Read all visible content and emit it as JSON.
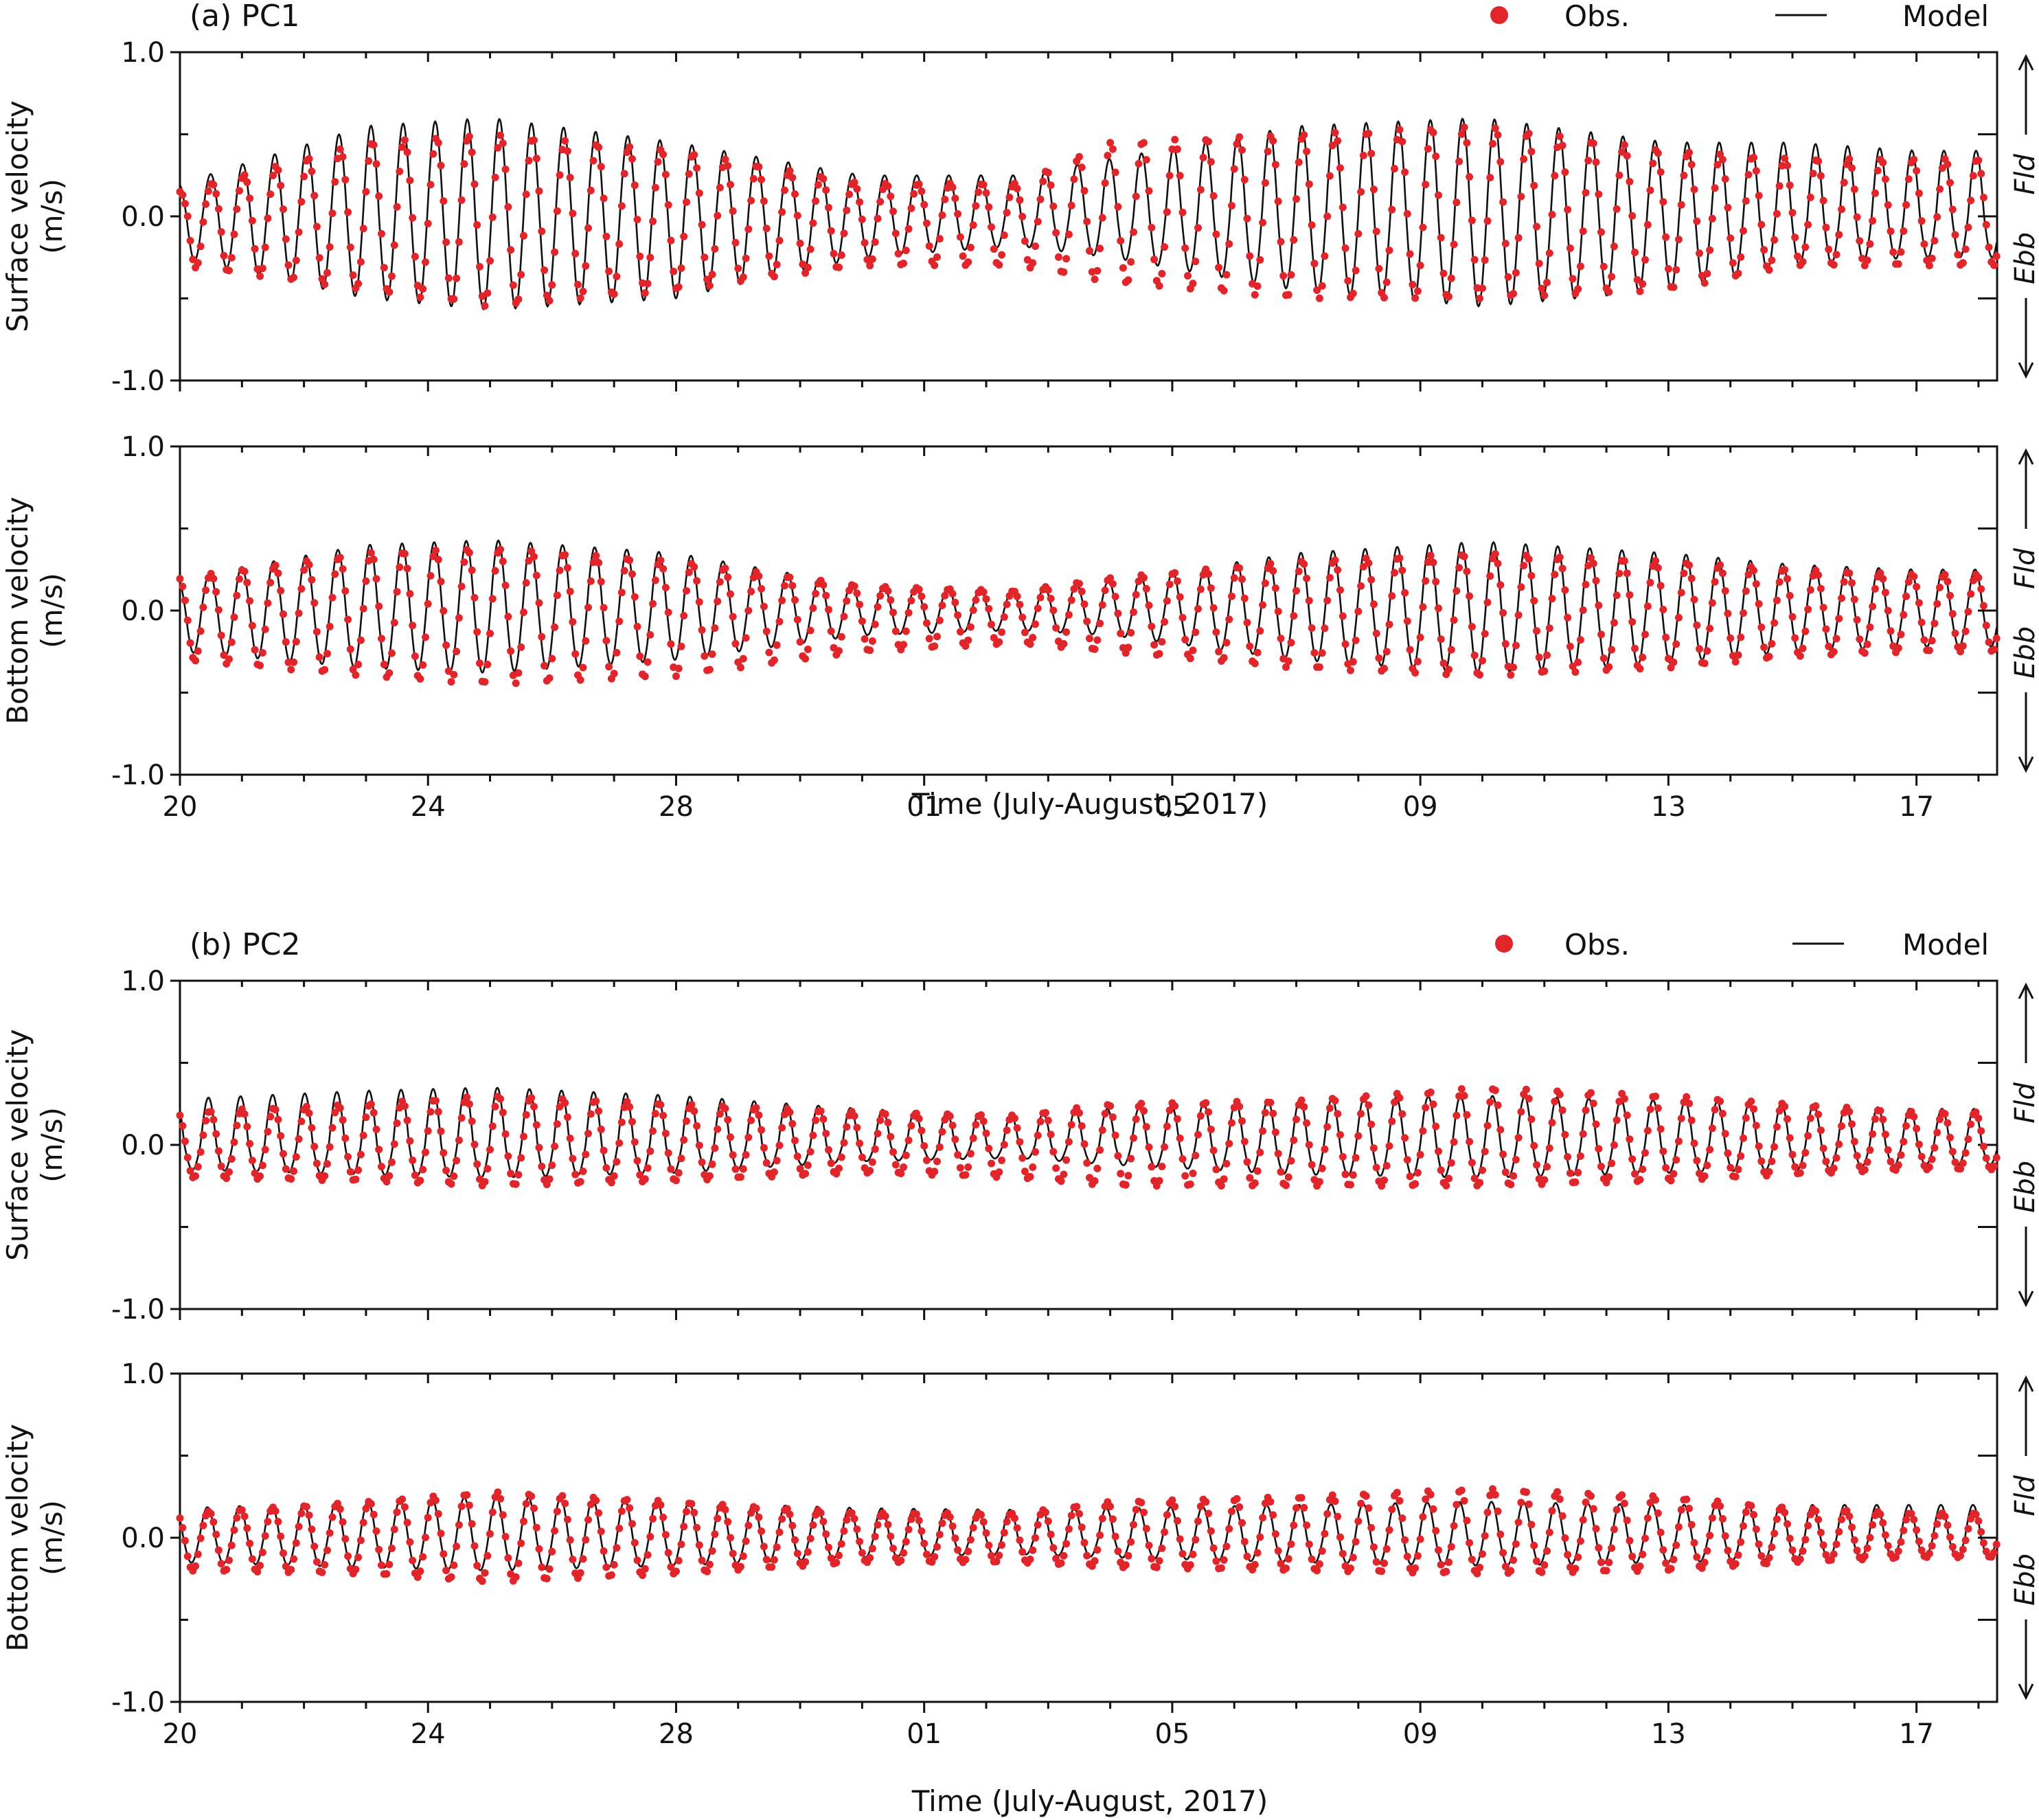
{
  "chart_data": [
    {
      "type": "line",
      "panel": "(a) PC1",
      "legend": {
        "obs": "Obs.",
        "model": "Model",
        "placement": "top-right"
      },
      "xlabel": "Time (July-August, 2017)",
      "x_tick_labels": [
        "20",
        "24",
        "28",
        "01",
        "05",
        "09",
        "13",
        "17"
      ],
      "flow_labels": {
        "flood": "Fld",
        "ebb": "Ebb"
      },
      "colors": {
        "obs": "#e0252b",
        "model": "#111111"
      },
      "subplots": [
        {
          "ylabel": [
            "Surface velocity",
            "(m/s)"
          ],
          "ylim": [
            -1.0,
            1.0
          ],
          "y_tick_labels": [
            "1.0",
            "0.0",
            "-1.0"
          ],
          "series": [
            {
              "name": "Model",
              "kind": "line",
              "description": "semi-diurnal tidal velocity, ~2 cycles/day",
              "x_days": [
                0,
                3,
                5,
                8,
                11,
                13.5,
                15,
                18,
                21,
                24,
                26,
                28
              ],
              "flood_peak": [
                0.2,
                0.55,
                0.6,
                0.45,
                0.25,
                0.25,
                0.35,
                0.55,
                0.6,
                0.45,
                0.45,
                0.4
              ],
              "ebb_trough": [
                -0.25,
                -0.5,
                -0.57,
                -0.5,
                -0.25,
                -0.18,
                -0.25,
                -0.45,
                -0.55,
                -0.45,
                -0.3,
                -0.25
              ]
            },
            {
              "name": "Obs.",
              "kind": "scatter",
              "description": "observations, slightly smaller flood peaks, deeper ebbs in places",
              "x_days": [
                0,
                3,
                5,
                8,
                11,
                13.5,
                15,
                18,
                21,
                24,
                26,
                28
              ],
              "flood_peak": [
                0.15,
                0.45,
                0.5,
                0.4,
                0.2,
                0.2,
                0.45,
                0.5,
                0.55,
                0.4,
                0.35,
                0.35
              ],
              "ebb_trough": [
                -0.3,
                -0.45,
                -0.55,
                -0.45,
                -0.3,
                -0.3,
                -0.4,
                -0.5,
                -0.5,
                -0.45,
                -0.3,
                -0.3
              ]
            }
          ]
        },
        {
          "ylabel": [
            "Bottom velocity",
            "(m/s)"
          ],
          "ylim": [
            -1.0,
            1.0
          ],
          "y_tick_labels": [
            "1.0",
            "0.0",
            "-1.0"
          ],
          "series": [
            {
              "name": "Model",
              "kind": "line",
              "x_days": [
                0,
                3,
                5,
                8,
                11,
                13.5,
                15,
                18,
                21,
                24,
                26,
                28
              ],
              "flood_peak": [
                0.2,
                0.4,
                0.43,
                0.35,
                0.15,
                0.12,
                0.18,
                0.35,
                0.42,
                0.35,
                0.28,
                0.25
              ],
              "ebb_trough": [
                -0.25,
                -0.35,
                -0.38,
                -0.3,
                -0.15,
                -0.12,
                -0.15,
                -0.3,
                -0.38,
                -0.32,
                -0.25,
                -0.22
              ]
            },
            {
              "name": "Obs.",
              "kind": "scatter",
              "x_days": [
                0,
                3,
                5,
                8,
                11,
                13.5,
                15,
                18,
                21,
                24,
                26,
                28
              ],
              "flood_peak": [
                0.2,
                0.35,
                0.38,
                0.3,
                0.15,
                0.12,
                0.2,
                0.3,
                0.35,
                0.3,
                0.25,
                0.22
              ],
              "ebb_trough": [
                -0.3,
                -0.4,
                -0.45,
                -0.4,
                -0.25,
                -0.2,
                -0.25,
                -0.35,
                -0.4,
                -0.35,
                -0.28,
                -0.25
              ]
            }
          ]
        }
      ]
    },
    {
      "type": "line",
      "panel": "(b) PC2",
      "legend": {
        "obs": "Obs.",
        "model": "Model",
        "placement": "top-right"
      },
      "xlabel": "Time (July-August, 2017)",
      "x_tick_labels": [
        "20",
        "24",
        "28",
        "01",
        "05",
        "09",
        "13",
        "17"
      ],
      "flow_labels": {
        "flood": "Fld",
        "ebb": "Ebb"
      },
      "colors": {
        "obs": "#e0252b",
        "model": "#111111"
      },
      "subplots": [
        {
          "ylabel": [
            "Surface velocity",
            "(m/s)"
          ],
          "ylim": [
            -1.0,
            1.0
          ],
          "y_tick_labels": [
            "1.0",
            "0.0",
            "-1.0"
          ],
          "series": [
            {
              "name": "Model",
              "kind": "line",
              "x_days": [
                0,
                3,
                5,
                8,
                11,
                13.5,
                15,
                18,
                21,
                24,
                26,
                28
              ],
              "flood_peak": [
                0.28,
                0.33,
                0.35,
                0.3,
                0.22,
                0.18,
                0.22,
                0.28,
                0.3,
                0.27,
                0.25,
                0.22
              ],
              "ebb_trough": [
                -0.15,
                -0.18,
                -0.2,
                -0.17,
                -0.1,
                -0.08,
                -0.12,
                -0.18,
                -0.2,
                -0.17,
                -0.15,
                -0.12
              ]
            },
            {
              "name": "Obs.",
              "kind": "scatter",
              "x_days": [
                0,
                3,
                5,
                8,
                11,
                13.5,
                15,
                18,
                21,
                24,
                26,
                28
              ],
              "flood_peak": [
                0.2,
                0.25,
                0.3,
                0.25,
                0.2,
                0.18,
                0.25,
                0.27,
                0.35,
                0.3,
                0.25,
                0.2
              ],
              "ebb_trough": [
                -0.2,
                -0.22,
                -0.25,
                -0.22,
                -0.17,
                -0.2,
                -0.25,
                -0.25,
                -0.25,
                -0.22,
                -0.18,
                -0.15
              ]
            }
          ]
        },
        {
          "ylabel": [
            "Bottom velocity",
            "(m/s)"
          ],
          "ylim": [
            -1.0,
            1.0
          ],
          "y_tick_labels": [
            "1.0",
            "0.0",
            "-1.0"
          ],
          "series": [
            {
              "name": "Model",
              "kind": "line",
              "x_days": [
                0,
                3,
                5,
                8,
                11,
                13.5,
                15,
                18,
                21,
                24,
                26,
                28
              ],
              "flood_peak": [
                0.18,
                0.22,
                0.25,
                0.22,
                0.18,
                0.17,
                0.18,
                0.2,
                0.22,
                0.2,
                0.2,
                0.2
              ],
              "ebb_trough": [
                -0.15,
                -0.18,
                -0.2,
                -0.17,
                -0.12,
                -0.1,
                -0.12,
                -0.15,
                -0.17,
                -0.15,
                -0.13,
                -0.12
              ]
            },
            {
              "name": "Obs.",
              "kind": "scatter",
              "x_days": [
                0,
                3,
                5,
                8,
                11,
                13.5,
                15,
                18,
                21,
                24,
                26,
                28
              ],
              "flood_peak": [
                0.15,
                0.22,
                0.28,
                0.22,
                0.15,
                0.15,
                0.22,
                0.25,
                0.3,
                0.25,
                0.18,
                0.15
              ],
              "ebb_trough": [
                -0.2,
                -0.22,
                -0.27,
                -0.22,
                -0.15,
                -0.15,
                -0.18,
                -0.2,
                -0.22,
                -0.2,
                -0.15,
                -0.12
              ]
            }
          ]
        }
      ]
    }
  ]
}
